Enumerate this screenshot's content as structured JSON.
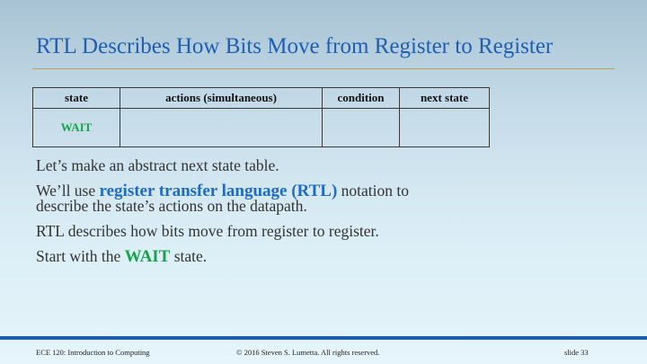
{
  "slide": {
    "title": "RTL Describes How Bits Move from Register to Register"
  },
  "table": {
    "headers": [
      "state",
      "actions (simultaneous)",
      "condition",
      "next state"
    ],
    "rows": [
      {
        "state": "WAIT",
        "actions": "",
        "condition": "",
        "next_state": ""
      }
    ]
  },
  "body": {
    "p1": "Let’s make an abstract next state table.",
    "p2_prefix": "We’ll use ",
    "p2_highlight": "register transfer language (RTL)",
    "p2_suffix": " notation to describe the state’s actions on the datapath.",
    "p3": "RTL describes how bits move from register to register.",
    "p4_prefix": "Start with the ",
    "p4_highlight": "WAIT",
    "p4_suffix": " state."
  },
  "footer": {
    "course": "ECE 120: Introduction to Computing",
    "copyright": "© 2016 Steven S. Lumetta.  All rights reserved.",
    "slide_number": "slide 33"
  },
  "colors": {
    "title": "#1f5fb3",
    "highlight_blue": "#1f6bc2",
    "highlight_green": "#16a34a",
    "footer_bar": "#1c5fa6"
  }
}
